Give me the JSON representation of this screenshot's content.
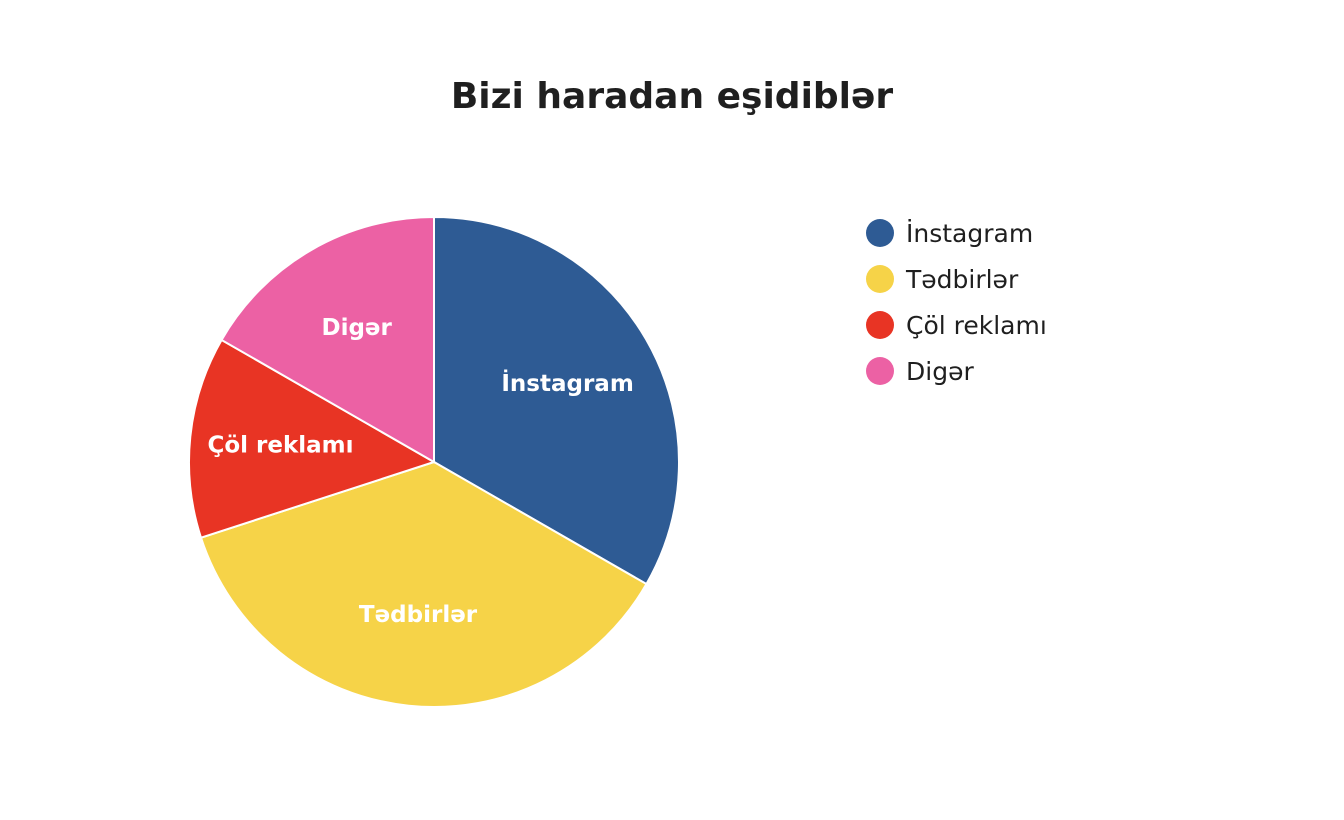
{
  "chart_data": {
    "type": "pie",
    "title": "Bizi haradan eşidiblər",
    "legend_position": "right",
    "slices": [
      {
        "label": "İnstagram",
        "value": 33.3,
        "color": "#2E5B94"
      },
      {
        "label": "Tədbirlər",
        "value": 36.7,
        "color": "#F6D348"
      },
      {
        "label": "Çöl reklamı",
        "value": 13.3,
        "color": "#E83424"
      },
      {
        "label": "Digər",
        "value": 16.7,
        "color": "#EC61A4"
      }
    ]
  }
}
